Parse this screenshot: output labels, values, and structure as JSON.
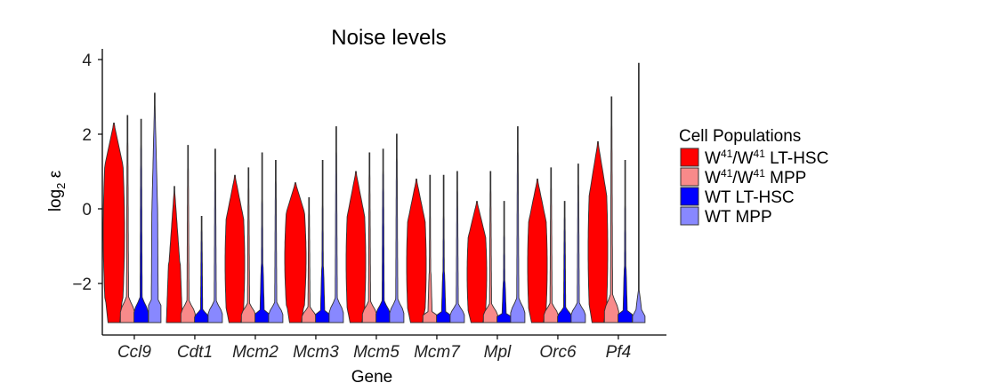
{
  "chart_data": {
    "type": "violin",
    "title": "Noise levels",
    "xlabel": "Gene",
    "ylabel": "log",
    "ylabel_sub": "2",
    "ylabel_suffix": " ε",
    "ylim": [
      -3.3,
      4.3
    ],
    "yticks": [
      -2,
      0,
      2,
      4
    ],
    "ytick_labels": [
      "−2",
      "0",
      "2",
      "4"
    ],
    "categories": [
      "Ccl9",
      "Cdt1",
      "Mcm2",
      "Mcm3",
      "Mcm5",
      "Mcm7",
      "Mpl",
      "Orc6",
      "Pf4"
    ],
    "legend": {
      "title": "Cell Populations",
      "entries": [
        {
          "pre": "W",
          "sup1": "41",
          "mid": "/W",
          "sup2": "41",
          "post": " LT-HSC",
          "color": "#ff0000"
        },
        {
          "pre": "W",
          "sup1": "41",
          "mid": "/W",
          "sup2": "41",
          "post": " MPP",
          "color": "#f88a8a"
        },
        {
          "pre": "WT LT-HSC",
          "sup1": "",
          "mid": "",
          "sup2": "",
          "post": "",
          "color": "#0000ff"
        },
        {
          "pre": "WT MPP",
          "sup1": "",
          "mid": "",
          "sup2": "",
          "post": "",
          "color": "#8888ff"
        }
      ]
    },
    "series": [
      {
        "name": "W41/W41 LT-HSC",
        "color": "#ff0000",
        "max": [
          2.3,
          0.6,
          0.9,
          0.7,
          1.0,
          0.8,
          0.2,
          0.8,
          1.8
        ],
        "min": [
          -3.0,
          -3.0,
          -3.0,
          -3.0,
          -3.0,
          -3.0,
          -3.0,
          -3.0,
          -3.0
        ],
        "shape": [
          "high",
          "low",
          "mid",
          "high",
          "mid",
          "mid",
          "mid",
          "mid",
          "mid"
        ]
      },
      {
        "name": "W41/W41 MPP",
        "color": "#f88a8a",
        "max": [
          2.5,
          1.7,
          1.1,
          0.3,
          1.5,
          0.9,
          1.0,
          1.1,
          3.0
        ],
        "min": [
          -3.0,
          -3.0,
          -3.0,
          -3.0,
          -3.0,
          -3.0,
          -3.0,
          -3.0,
          -3.0
        ],
        "shape": [
          "base",
          "base",
          "base",
          "base",
          "base",
          "taper",
          "base",
          "base",
          "base"
        ]
      },
      {
        "name": "WT LT-HSC",
        "color": "#0000ff",
        "max": [
          2.4,
          -0.2,
          1.5,
          1.3,
          1.6,
          0.9,
          0.2,
          0.2,
          1.3
        ],
        "min": [
          -3.0,
          -3.0,
          -3.0,
          -3.0,
          -3.0,
          -3.0,
          -3.0,
          -3.0,
          -3.0
        ],
        "shape": [
          "base",
          "base",
          "taper",
          "taper",
          "base",
          "taper",
          "taper",
          "base",
          "taper"
        ]
      },
      {
        "name": "WT MPP",
        "color": "#8888ff",
        "max": [
          3.1,
          1.6,
          1.3,
          2.2,
          2.0,
          1.0,
          2.2,
          1.2,
          3.9
        ],
        "min": [
          -3.0,
          -3.0,
          -3.0,
          -3.0,
          -3.0,
          -3.0,
          -3.0,
          -3.0,
          -3.0
        ],
        "shape": [
          "tall",
          "base",
          "base",
          "base",
          "base",
          "base",
          "base",
          "base",
          "thin"
        ]
      }
    ]
  }
}
